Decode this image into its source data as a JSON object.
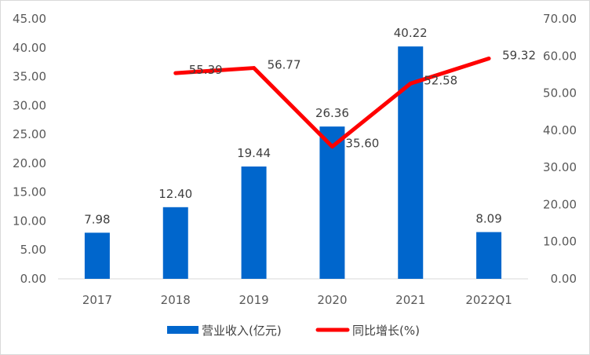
{
  "chart_data": {
    "type": "bar",
    "categories": [
      "2017",
      "2018",
      "2019",
      "2020",
      "2021",
      "2022Q1"
    ],
    "series": [
      {
        "name": "营业收入(亿元)",
        "type": "bar",
        "axis": "left",
        "color": "#0066CC",
        "values": [
          7.98,
          12.4,
          19.44,
          26.36,
          40.22,
          8.09
        ],
        "labels": [
          "7.98",
          "12.40",
          "19.44",
          "26.36",
          "40.22",
          "8.09"
        ]
      },
      {
        "name": "同比增长(%)",
        "type": "line",
        "axis": "right",
        "color": "#FF0000",
        "values": [
          null,
          55.39,
          56.77,
          35.6,
          52.58,
          59.32
        ],
        "labels": [
          "",
          "55.39",
          "56.77",
          "35.60",
          "52.58",
          "59.32"
        ]
      }
    ],
    "y_left": {
      "range": [
        0,
        45
      ],
      "ticks": [
        "0.00",
        "5.00",
        "10.00",
        "15.00",
        "20.00",
        "25.00",
        "30.00",
        "35.00",
        "40.00",
        "45.00"
      ]
    },
    "y_right": {
      "range": [
        0,
        70
      ],
      "ticks": [
        "0.00",
        "10.00",
        "20.00",
        "30.00",
        "40.00",
        "50.00",
        "60.00",
        "70.00"
      ]
    },
    "grid": false,
    "legend": "bottom"
  }
}
